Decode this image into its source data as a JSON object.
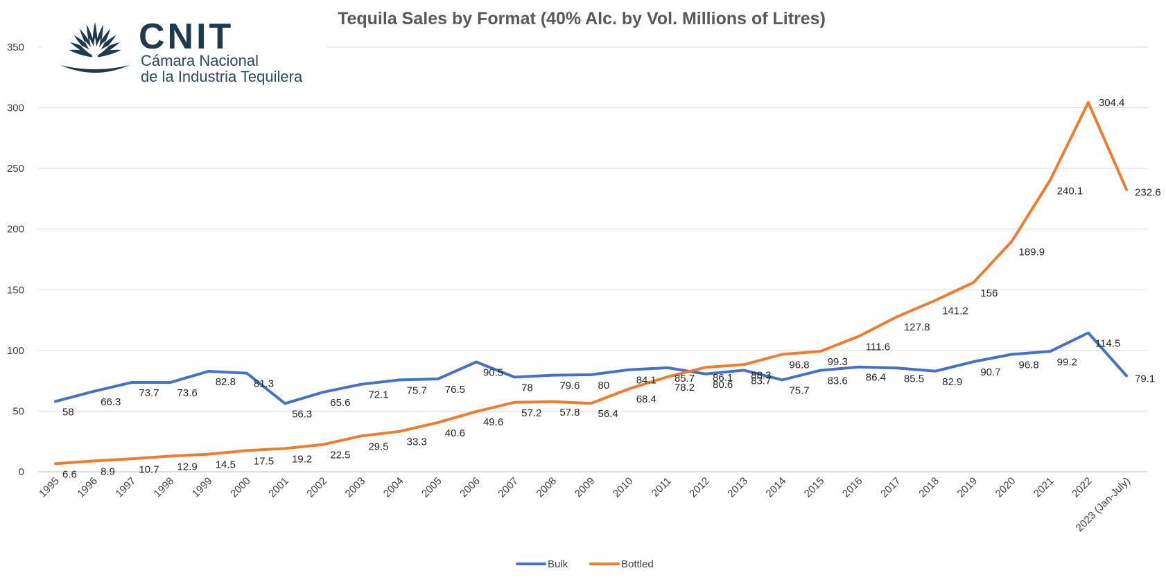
{
  "logo": {
    "acronym": "CNIT",
    "line1": "Cámara Nacional",
    "line2": "de la Industria Tequilera"
  },
  "chart_data": {
    "type": "line",
    "title": "Tequila Sales by Format (40% Alc. by Vol. Millions of Litres)",
    "xlabel": "",
    "ylabel": "",
    "ylim": [
      0,
      350
    ],
    "yticks": [
      0,
      50,
      100,
      150,
      200,
      250,
      300,
      350
    ],
    "grid": true,
    "legend_position": "bottom",
    "categories": [
      "1995",
      "1996",
      "1997",
      "1998",
      "1999",
      "2000",
      "2001",
      "2002",
      "2003",
      "2004",
      "2005",
      "2006",
      "2007",
      "2008",
      "2009",
      "2010",
      "2011",
      "2012",
      "2013",
      "2014",
      "2015",
      "2016",
      "2017",
      "2018",
      "2019",
      "2020",
      "2021",
      "2022",
      "2023 (Jan-July)"
    ],
    "series": [
      {
        "name": "Bulk",
        "color": "#4472c4",
        "values": [
          58,
          66.3,
          73.7,
          73.6,
          82.8,
          81.3,
          56.3,
          65.6,
          72.1,
          75.7,
          76.5,
          90.5,
          78,
          79.6,
          80,
          84.1,
          85.7,
          80.6,
          83.7,
          75.7,
          83.6,
          86.4,
          85.5,
          82.9,
          90.7,
          96.8,
          99.2,
          114.5,
          79.1
        ],
        "labels": [
          "58",
          "66.3",
          "73.7",
          "73.6",
          "82.8",
          "81.3",
          "56.3",
          "65.6",
          "72.1",
          "75.7",
          "76.5",
          "90.5",
          "78",
          "79.6",
          "80",
          "84.1",
          "85.7",
          "80.6",
          "83.7",
          "75.7",
          "83.6",
          "86.4",
          "85.5",
          "82.9",
          "90.7",
          "96.8",
          "99.2",
          "114.5",
          "79.1"
        ]
      },
      {
        "name": "Bottled",
        "color": "#ed7d31",
        "values": [
          6.6,
          8.9,
          10.7,
          12.9,
          14.5,
          17.5,
          19.2,
          22.5,
          29.5,
          33.3,
          40.6,
          49.6,
          57.2,
          57.8,
          56.4,
          68.4,
          78.2,
          86.1,
          88.3,
          96.8,
          99.3,
          111.6,
          127.8,
          141.2,
          156,
          189.9,
          240.1,
          304.4,
          232.6
        ],
        "labels": [
          "6.6",
          "8.9",
          "10.7",
          "12.9",
          "14.5",
          "17.5",
          "19.2",
          "22.5",
          "29.5",
          "33.3",
          "40.6",
          "49.6",
          "57.2",
          "57.8",
          "56.4",
          "68.4",
          "78.2",
          "86.1",
          "88.3",
          "96.8",
          "99.3",
          "111.6",
          "127.8",
          "141.2",
          "156",
          "189.9",
          "240.1",
          "304.4",
          "232.6"
        ]
      }
    ]
  }
}
